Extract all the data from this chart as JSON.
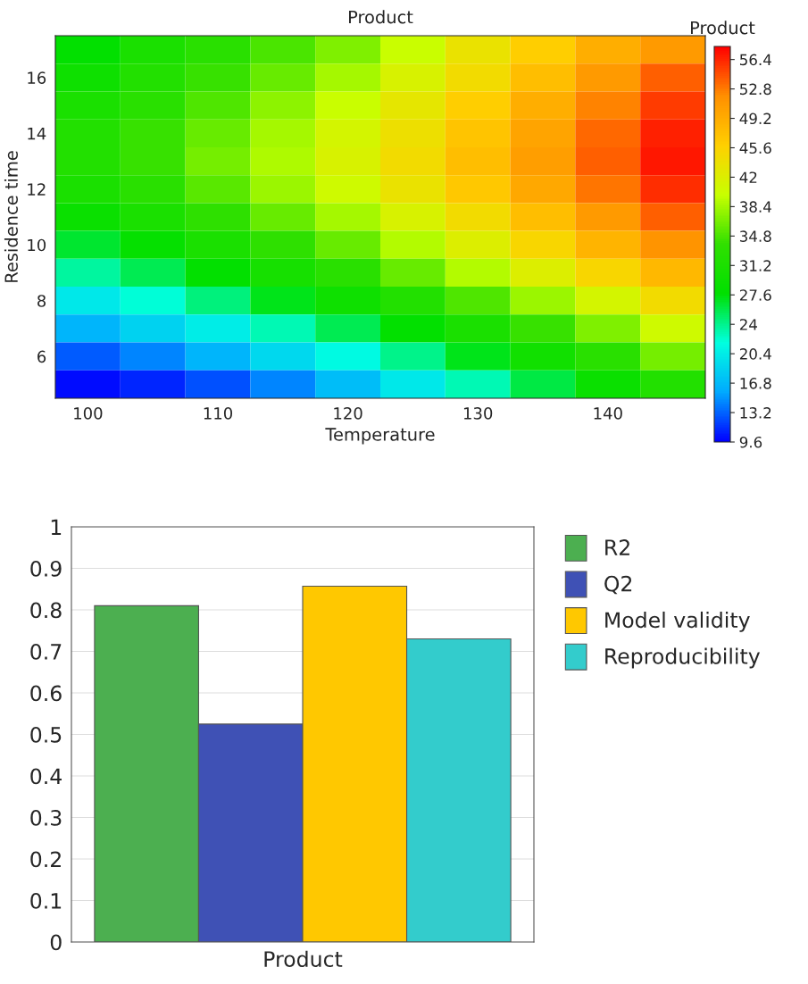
{
  "chart_data": [
    {
      "type": "heatmap",
      "title": "Product",
      "xlabel": "Temperature",
      "ylabel": "Residence time",
      "clabel": "Product",
      "categories": [
        "100",
        null,
        "110",
        null,
        "120",
        null,
        "130",
        null,
        "140",
        null
      ],
      "y_categories": [
        null,
        "16",
        null,
        "14",
        null,
        "12",
        null,
        "10",
        null,
        "8",
        null,
        "6",
        null
      ],
      "cells": [
        [
          28,
          31,
          33,
          34.8,
          37,
          40,
          43.5,
          46,
          49,
          51
        ],
        [
          29.5,
          32,
          34,
          36,
          38.5,
          41.5,
          44.5,
          47.5,
          51,
          54
        ],
        [
          31,
          33,
          35,
          37.5,
          40,
          43,
          46,
          49,
          52.5,
          55.5
        ],
        [
          32,
          34,
          36,
          38.5,
          41,
          44,
          47,
          50,
          53.5,
          56.5
        ],
        [
          32,
          34,
          36.5,
          38.8,
          41.5,
          44.5,
          47.5,
          50.5,
          54,
          57
        ],
        [
          31,
          33,
          35.5,
          38,
          40.5,
          43.5,
          46.5,
          49.5,
          53,
          56
        ],
        [
          29,
          31,
          33.5,
          36,
          38.5,
          41.5,
          44.5,
          47.5,
          51,
          54
        ],
        [
          26.5,
          28.5,
          31,
          33.5,
          36,
          39,
          42,
          45,
          48.5,
          51.5
        ],
        [
          23.5,
          25.5,
          28,
          30.5,
          33,
          36,
          39,
          42,
          45,
          48
        ],
        [
          20,
          22,
          24.5,
          27,
          29.5,
          32,
          35,
          38,
          41,
          44.5
        ],
        [
          16.5,
          18.5,
          20.5,
          23,
          25.5,
          28,
          31,
          34,
          37,
          40.5
        ],
        [
          13,
          14.5,
          16.5,
          19,
          21.5,
          24,
          27,
          30,
          33,
          36.5
        ],
        [
          10,
          11,
          12.5,
          14.5,
          17,
          20,
          23,
          26,
          29,
          32
        ]
      ],
      "colors": [
        "#0000ff",
        "#00aaff",
        "#00ffe0",
        "#00e000",
        "#30e000",
        "#c8ff00",
        "#ffd000",
        "#ff9000",
        "#ff0000"
      ],
      "clim": [
        9.6,
        58
      ],
      "cticks": [
        9.6,
        13.2,
        16.8,
        20.4,
        24,
        27.6,
        31.2,
        34.8,
        38.4,
        42,
        45.6,
        49.2,
        52.8,
        56.4
      ]
    },
    {
      "type": "bar",
      "categories": [
        "Product"
      ],
      "series": [
        {
          "name": "R2",
          "color": "#4caf50",
          "values": [
            0.81
          ]
        },
        {
          "name": "Q2",
          "color": "#3f51b5",
          "values": [
            0.525
          ]
        },
        {
          "name": "Model validity",
          "color": "#ffc800",
          "values": [
            0.857
          ]
        },
        {
          "name": "Reproducibility",
          "color": "#33cccc",
          "values": [
            0.73
          ]
        }
      ],
      "ylim": [
        0,
        1
      ],
      "yticks": [
        0,
        0.1,
        0.2,
        0.3,
        0.4,
        0.5,
        0.6,
        0.7,
        0.8,
        0.9,
        1
      ],
      "grid": "y",
      "legend": "right"
    }
  ]
}
